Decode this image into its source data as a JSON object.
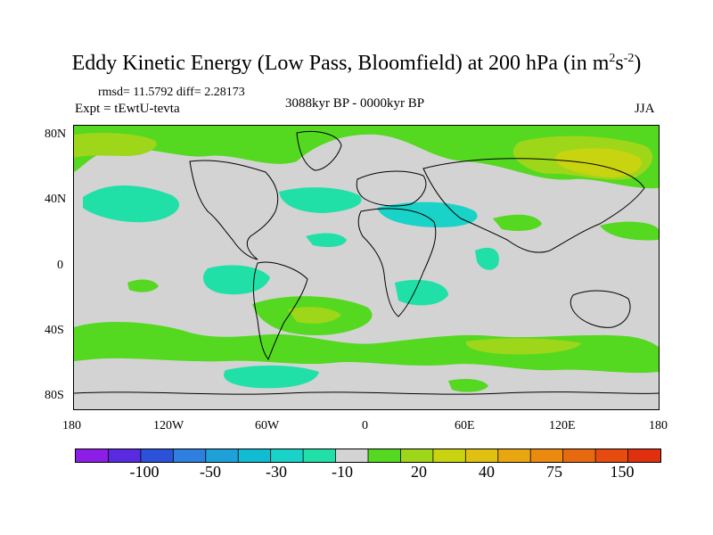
{
  "title": {
    "main": "Eddy Kinetic Energy (Low Pass, Bloomfield) at 200 hPa (in m",
    "sup1": "2",
    "mid": "s",
    "sup2": "-2",
    "end": ")"
  },
  "stats": {
    "rmsd_diff": "rmsd= 11.5792  diff= 2.28173",
    "expt": "Expt = tEwtU-tevta",
    "period": "3088kyr BP - 0000kyr BP",
    "season": "JJA"
  },
  "axes": {
    "lat_labels": [
      "80N",
      "40N",
      "0",
      "40S",
      "80S"
    ],
    "lon_labels": [
      "180",
      "120W",
      "60W",
      "0",
      "60E",
      "120E",
      "180"
    ]
  },
  "colorbar": {
    "colors": [
      "#8c1ee6",
      "#5a2ae0",
      "#2c52d9",
      "#2f7fe0",
      "#1ea0d8",
      "#10bcd2",
      "#19d2c8",
      "#20e0a8",
      "#d3d3d3",
      "#54d820",
      "#9ed61a",
      "#c8d410",
      "#e0c010",
      "#e8a610",
      "#ec8a10",
      "#e86a10",
      "#e64c10",
      "#e03010"
    ],
    "labels": [
      "-100",
      "-50",
      "-30",
      "-10",
      "20",
      "40",
      "75",
      "150"
    ]
  },
  "map": {
    "legend_colors": {
      "background": "#d3d3d3",
      "positive_low": "#54d820",
      "positive_mid": "#9ed61a",
      "positive_high": "#c8d410",
      "warm": "#e0c010",
      "negative_low": "#20e0a8",
      "negative_mid": "#19d2c8",
      "coast": "#000000"
    }
  }
}
